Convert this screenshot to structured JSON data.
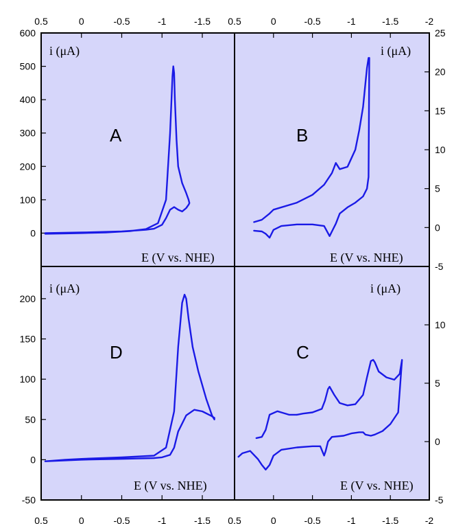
{
  "figure": {
    "background": "#ffffff",
    "plot_fill": "#d6d6fa",
    "curve_color": "#1a1ae6"
  },
  "chart_data": [
    {
      "type": "line",
      "panel_label": "A",
      "xlabel": "E (V vs. NHE)",
      "ylabel": "i (μA)",
      "xlim": [
        0.5,
        -1.9
      ],
      "ylim": [
        -100,
        600
      ],
      "xticks": [
        0.5,
        0,
        -0.5,
        -1,
        -1.5
      ],
      "yticks": [
        0,
        100,
        200,
        300,
        400,
        500,
        600
      ],
      "grid": false,
      "series": [
        {
          "x": [
            0.45,
            0.2,
            0.0,
            -0.3,
            -0.6,
            -0.8,
            -0.95,
            -1.05,
            -1.1,
            -1.13,
            -1.14,
            -1.15,
            -1.16,
            -1.18,
            -1.2,
            -1.25,
            -1.3,
            -1.33,
            -1.34,
            -1.33,
            -1.3,
            -1.25,
            -1.2,
            -1.15,
            -1.1,
            -1.05,
            -1.0,
            -0.9,
            -0.8,
            -0.5,
            0.0,
            0.45
          ],
          "y": [
            -2,
            -1,
            0,
            2,
            6,
            12,
            30,
            100,
            300,
            470,
            500,
            480,
            400,
            280,
            200,
            150,
            120,
            100,
            90,
            85,
            75,
            65,
            70,
            78,
            70,
            45,
            25,
            13,
            10,
            5,
            2,
            0
          ]
        }
      ]
    },
    {
      "type": "line",
      "panel_label": "B",
      "xlabel": "E (V vs. NHE)",
      "ylabel": "i (μA)",
      "xlim": [
        0.5,
        -2
      ],
      "ylim": [
        -5,
        25
      ],
      "xticks": [
        0.5,
        0,
        -0.5,
        -1,
        -1.5,
        -2
      ],
      "yticks": [
        -5,
        0,
        5,
        10,
        15,
        20,
        25
      ],
      "grid": false,
      "series": [
        {
          "x": [
            0.25,
            0.15,
            0.05,
            0.0,
            -0.3,
            -0.5,
            -0.65,
            -0.75,
            -0.8,
            -0.85,
            -0.95,
            -1.05,
            -1.1,
            -1.15,
            -1.18,
            -1.2,
            -1.22,
            -1.23,
            -1.22,
            -1.2,
            -1.15,
            -1.05,
            -0.95,
            -0.85,
            -0.8,
            -0.75,
            -0.72,
            -0.65,
            -0.5,
            -0.3,
            -0.1,
            0.0,
            0.05,
            0.1,
            0.15,
            0.25
          ],
          "y": [
            0.7,
            1.0,
            1.8,
            2.3,
            3.2,
            4.2,
            5.5,
            7.0,
            8.3,
            7.5,
            7.8,
            10.0,
            12.5,
            15.5,
            18.5,
            20.5,
            21.8,
            21.8,
            6.5,
            5.0,
            4.0,
            3.2,
            2.6,
            1.8,
            0.5,
            -0.5,
            -1.1,
            0.2,
            0.4,
            0.4,
            0.2,
            -0.3,
            -1.3,
            -0.8,
            -0.5,
            -0.4
          ]
        }
      ]
    },
    {
      "type": "line",
      "panel_label": "D",
      "xlabel": "E (V vs. NHE)",
      "ylabel": "i (μA)",
      "xlim": [
        0.5,
        -1.9
      ],
      "ylim": [
        -50,
        240
      ],
      "xticks": [
        0.5,
        0,
        -0.5,
        -1,
        -1.5
      ],
      "yticks": [
        -50,
        0,
        50,
        100,
        150,
        200
      ],
      "grid": false,
      "series": [
        {
          "x": [
            0.45,
            0.2,
            0.0,
            -0.5,
            -0.9,
            -1.05,
            -1.15,
            -1.2,
            -1.25,
            -1.28,
            -1.3,
            -1.33,
            -1.38,
            -1.45,
            -1.55,
            -1.62,
            -1.65,
            -1.65,
            -1.6,
            -1.5,
            -1.4,
            -1.3,
            -1.2,
            -1.15,
            -1.1,
            -1.0,
            -0.9,
            -0.5,
            0.0,
            0.45
          ],
          "y": [
            -2,
            0,
            1,
            3,
            5,
            15,
            60,
            140,
            195,
            205,
            200,
            175,
            140,
            110,
            75,
            55,
            50,
            52,
            55,
            60,
            62,
            55,
            35,
            15,
            6,
            3,
            2,
            1,
            0,
            -2
          ]
        }
      ]
    },
    {
      "type": "line",
      "panel_label": "C",
      "xlabel": "E (V vs. NHE)",
      "ylabel": "i (μA)",
      "xlim": [
        0.5,
        -2
      ],
      "ylim": [
        -5,
        15
      ],
      "xticks": [
        0.5,
        0,
        -0.5,
        -1,
        -1.5,
        -2
      ],
      "yticks": [
        -5,
        0,
        5,
        10
      ],
      "grid": false,
      "series": [
        {
          "x": [
            -0.3,
            -0.38,
            -0.5,
            -0.62,
            -0.66,
            -0.7,
            -0.72,
            -0.78,
            -0.85,
            -0.95,
            -1.05,
            -1.15,
            -1.2,
            -1.25,
            -1.28,
            -1.3,
            -1.35,
            -1.45,
            -1.55,
            -1.62,
            -1.65,
            -1.6,
            -1.5,
            -1.4,
            -1.3,
            -1.25,
            -1.18,
            -1.15,
            -1.1,
            -1.0,
            -0.9,
            -0.75,
            -0.7,
            -0.67,
            -0.65,
            -0.6,
            -0.5,
            -0.3,
            -0.1,
            0.0,
            0.05,
            0.1,
            0.15,
            0.2,
            0.3,
            0.4,
            0.45
          ],
          "y": [
            2.3,
            2.4,
            2.5,
            2.8,
            3.5,
            4.5,
            4.7,
            4.0,
            3.3,
            3.1,
            3.2,
            4.0,
            5.5,
            6.9,
            7.0,
            6.8,
            6.0,
            5.5,
            5.3,
            5.8,
            7.0,
            2.5,
            1.5,
            0.9,
            0.6,
            0.5,
            0.6,
            0.8,
            0.8,
            0.7,
            0.5,
            0.4,
            0.0,
            -0.8,
            -1.2,
            -0.4,
            -0.4,
            -0.5,
            -0.7,
            -1.2,
            -2.0,
            -2.4,
            -2.0,
            -1.5,
            -0.8,
            -1.0,
            -1.3
          ]
        },
        {
          "x": [
            0.22,
            0.15,
            0.1,
            0.05,
            -0.05,
            -0.1,
            -0.2,
            -0.3
          ],
          "y": [
            0.3,
            0.4,
            1.0,
            2.3,
            2.6,
            2.5,
            2.3,
            2.3
          ]
        }
      ]
    }
  ]
}
